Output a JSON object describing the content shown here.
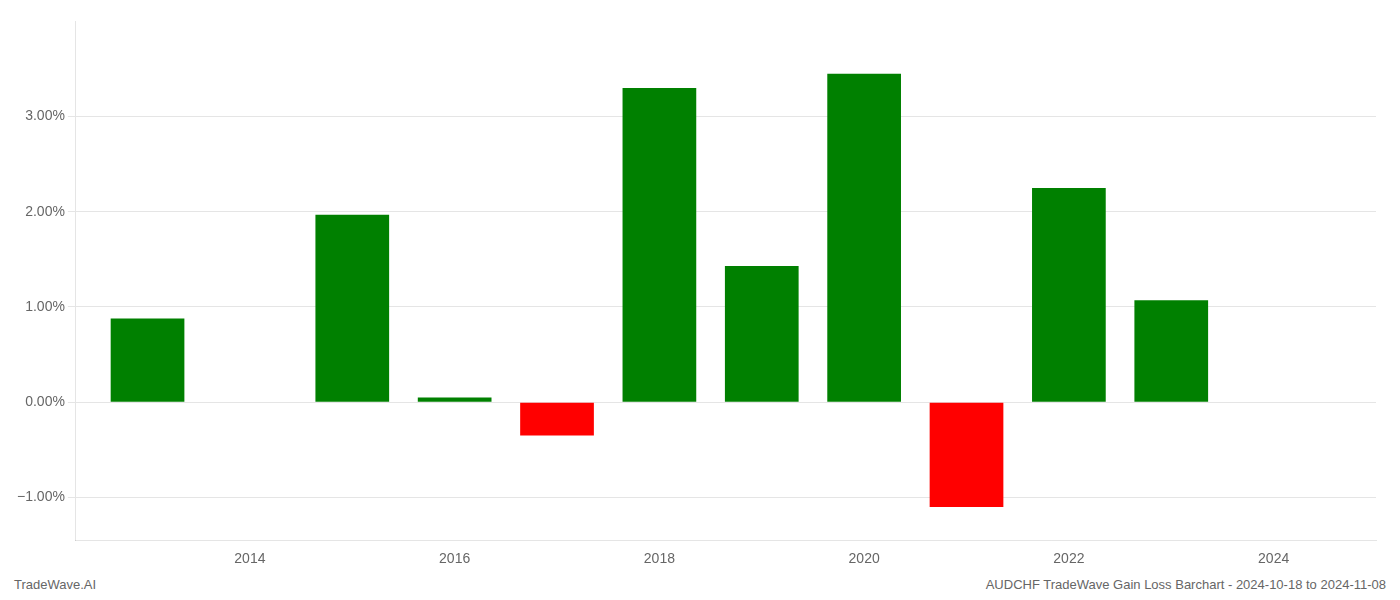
{
  "chart_data": {
    "type": "bar",
    "x": [
      2013,
      2015,
      2016,
      2017,
      2018,
      2019,
      2020,
      2021,
      2022,
      2023
    ],
    "values": [
      0.0088,
      0.0197,
      0.0005,
      -0.0035,
      0.033,
      0.0143,
      0.0345,
      -0.011,
      0.0225,
      0.0107
    ],
    "colors": [
      "#008000",
      "#008000",
      "#008000",
      "#FF0000",
      "#008000",
      "#008000",
      "#008000",
      "#FF0000",
      "#008000",
      "#008000"
    ],
    "xlim": [
      2012.3,
      2025.0
    ],
    "xticks": [
      2014,
      2016,
      2018,
      2020,
      2022,
      2024
    ],
    "ylim": [
      -0.0145,
      0.04
    ],
    "yticks": [
      {
        "value": -0.01,
        "label": "−1.00%"
      },
      {
        "value": 0.0,
        "label": "0.00%"
      },
      {
        "value": 0.01,
        "label": "1.00%"
      },
      {
        "value": 0.02,
        "label": "2.00%"
      },
      {
        "value": 0.03,
        "label": "3.00%"
      }
    ],
    "grid": true,
    "annotations": [
      "TradeWave.AI",
      "AUDCHF TradeWave Gain Loss Barchart - 2024-10-18 to 2024-11-08"
    ]
  }
}
